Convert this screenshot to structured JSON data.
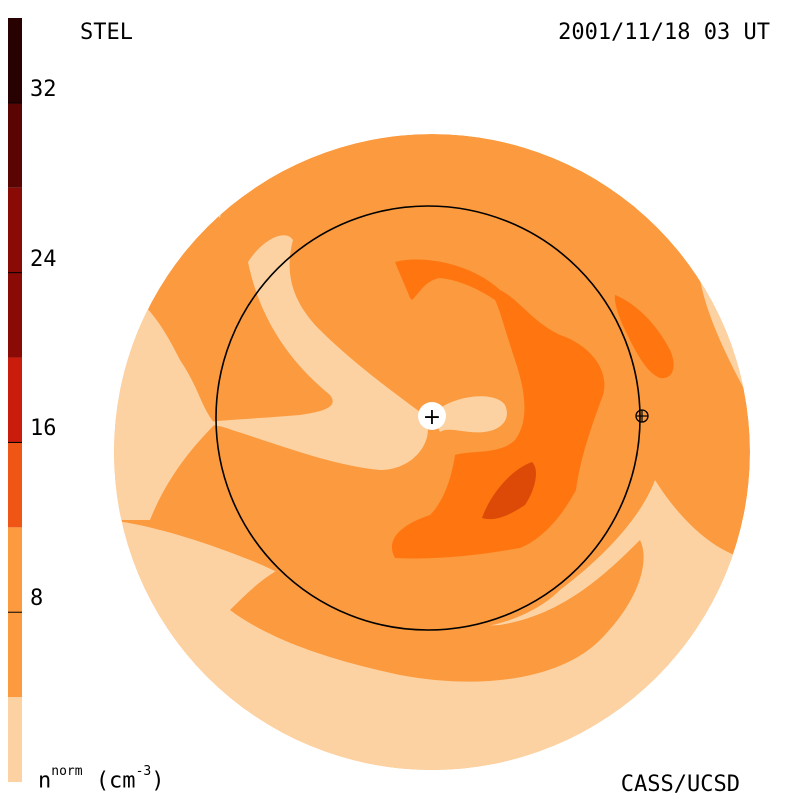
{
  "header": {
    "source": "STEL",
    "timestamp": "2001/11/18 03 UT",
    "credit": "CASS/UCSD"
  },
  "colorbar": {
    "quantity": "n",
    "quantity_sup": "norm",
    "unit": "(cm",
    "unit_sup": "-3",
    "unit_close": ")",
    "ticks": [
      {
        "value": 8,
        "label": "8"
      },
      {
        "value": 16,
        "label": "16"
      },
      {
        "value": 24,
        "label": "24"
      },
      {
        "value": 32,
        "label": "32"
      }
    ],
    "range": [
      0,
      36
    ],
    "bands": [
      {
        "from": 0,
        "to": 4,
        "color": "#fdd2a2"
      },
      {
        "from": 4,
        "to": 12,
        "color": "#fb9a3e"
      },
      {
        "from": 12,
        "to": 16,
        "color": "#ef5616"
      },
      {
        "from": 16,
        "to": 20,
        "color": "#c91c0c"
      },
      {
        "from": 20,
        "to": 28,
        "color": "#8a0a06"
      },
      {
        "from": 28,
        "to": 32,
        "color": "#5a0403"
      },
      {
        "from": 32,
        "to": 36,
        "color": "#280101"
      }
    ]
  },
  "colors": {
    "low": "#fdd2a2",
    "background": "#fb9a3e",
    "mid": "#ff7610",
    "high": "#dd4a08",
    "orbit": "#000000",
    "sun": "#ffffff"
  },
  "markers": {
    "sun_symbol": "+",
    "earth_symbol": "⊕"
  }
}
